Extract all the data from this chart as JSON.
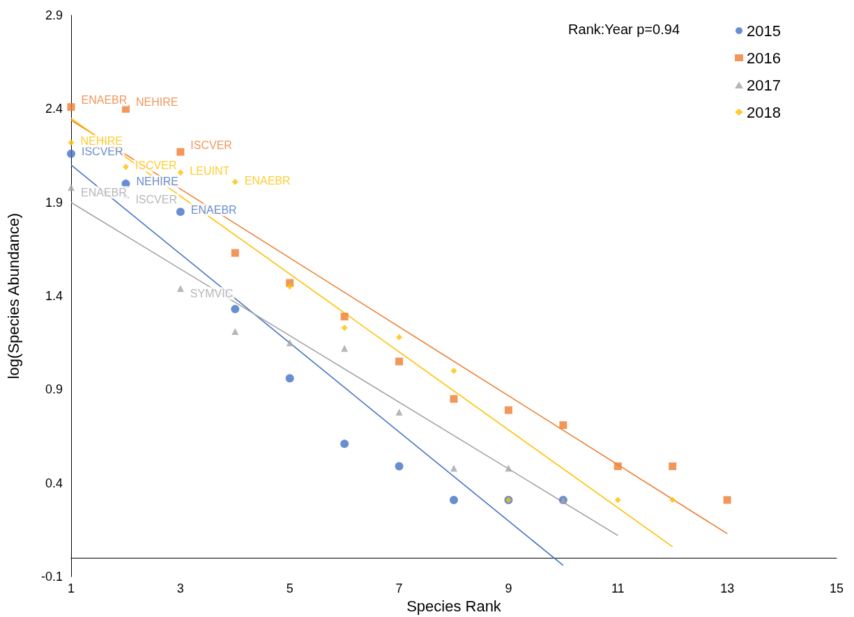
{
  "chart_data": {
    "type": "scatter",
    "xlabel": "Species Rank",
    "ylabel": "log(Species Abundance)",
    "xlim": [
      1,
      15
    ],
    "xticks": [
      1,
      3,
      5,
      7,
      9,
      11,
      13,
      15
    ],
    "ylim": [
      -0.1,
      2.9
    ],
    "yticks": [
      -0.1,
      0.4,
      0.9,
      1.4,
      1.9,
      2.4,
      2.9
    ],
    "grid": false,
    "legend": "top right",
    "annotations": [
      "Rank:Year p=0.94"
    ],
    "series": [
      {
        "name": "2015",
        "color": "#4472c4",
        "marker": "circle",
        "x": [
          1,
          2,
          3,
          4,
          5,
          6,
          7,
          8,
          9,
          10
        ],
        "values": [
          2.16,
          2.0,
          1.85,
          1.33,
          0.96,
          0.61,
          0.49,
          0.31,
          0.31,
          0.31
        ],
        "value_labels": [
          "ISCVER",
          "NEHIRE",
          "ENAEBR",
          null,
          null,
          null,
          null,
          null,
          null,
          null
        ]
      },
      {
        "name": "2016",
        "color": "#ed7d31",
        "marker": "square",
        "x": [
          1,
          2,
          3,
          4,
          5,
          6,
          7,
          8,
          9,
          10,
          11,
          12,
          13
        ],
        "values": [
          2.41,
          2.4,
          2.17,
          1.63,
          1.47,
          1.29,
          1.05,
          0.85,
          0.79,
          0.71,
          0.49,
          0.49,
          0.31
        ],
        "value_labels": [
          "ENAEBR",
          "NEHIRE",
          "ISCVER",
          null,
          null,
          null,
          null,
          null,
          null,
          null,
          null,
          null,
          null
        ]
      },
      {
        "name": "2017",
        "color": "#a5a5a5",
        "marker": "triangle",
        "x": [
          1,
          2,
          3,
          4,
          5,
          6,
          7,
          8,
          9,
          10
        ],
        "values": [
          1.98,
          1.94,
          1.44,
          1.21,
          1.15,
          1.12,
          0.78,
          0.48,
          0.48,
          0.31
        ],
        "value_labels": [
          "ENAEBR",
          "ISCVER",
          "SYMVIC",
          null,
          null,
          null,
          null,
          null,
          null,
          null
        ]
      },
      {
        "name": "2018",
        "color": "#ffc000",
        "marker": "diamond",
        "x": [
          1,
          2,
          3,
          4,
          5,
          6,
          7,
          8,
          9,
          10,
          11,
          12
        ],
        "values": [
          2.22,
          2.09,
          2.06,
          2.01,
          1.45,
          1.23,
          1.18,
          1.0,
          0.31,
          null,
          0.31,
          0.31
        ],
        "value_labels": [
          "NEHIRE",
          "ISCVER",
          "LEUINT",
          "ENAEBR",
          null,
          null,
          null,
          null,
          null,
          null,
          null,
          null
        ]
      },
      {
        "type": "line",
        "color": "#4472c4",
        "marker": "none",
        "x": [
          1,
          10
        ],
        "values": [
          2.1,
          -0.04
        ]
      },
      {
        "type": "line",
        "color": "#ed7d31",
        "marker": "none",
        "x": [
          1,
          13
        ],
        "values": [
          2.34,
          0.13
        ]
      },
      {
        "type": "line",
        "color": "#a5a5a5",
        "marker": "none",
        "x": [
          1,
          11
        ],
        "values": [
          1.9,
          0.12
        ]
      },
      {
        "type": "line",
        "color": "#ffc000",
        "marker": "none",
        "x": [
          1,
          12
        ],
        "values": [
          2.35,
          0.06
        ]
      }
    ]
  }
}
